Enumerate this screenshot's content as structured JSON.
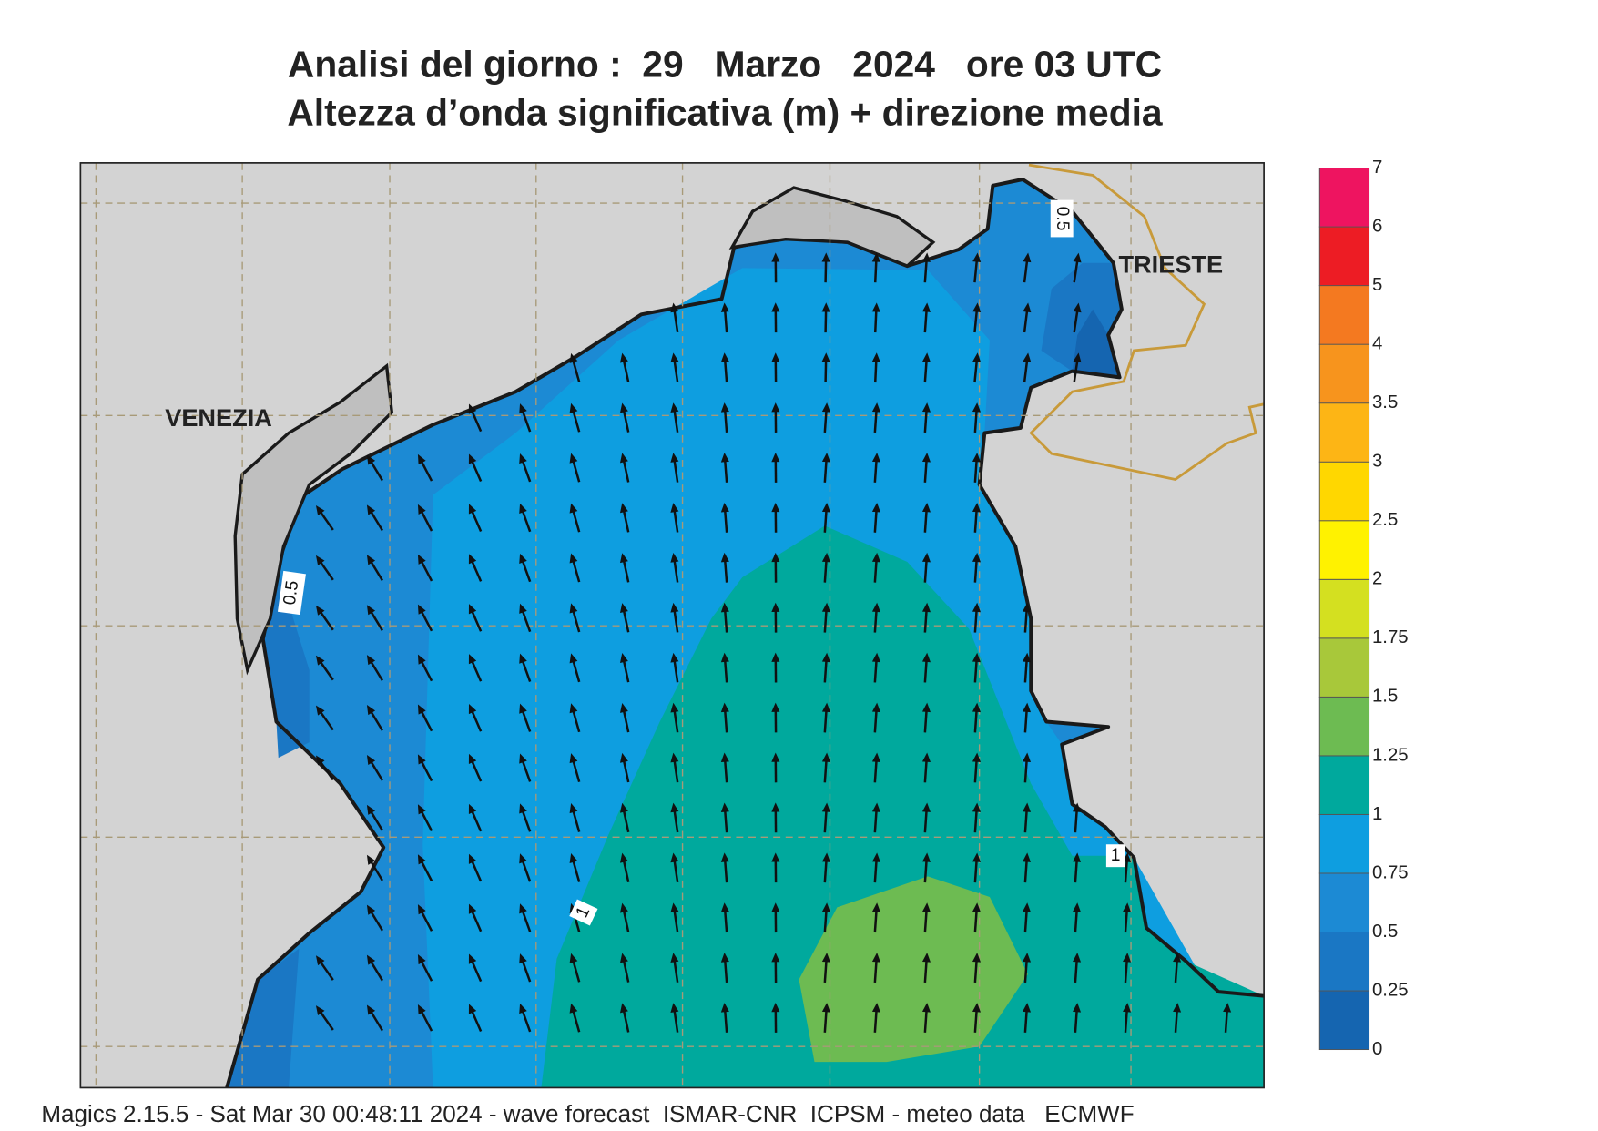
{
  "header": {
    "title": [
      "Analisi del giorno :  29   Marzo   2024   ore 03 UTC",
      "Altezza d’onda significativa (m) + direzione media"
    ]
  },
  "places": [
    "VENEZIA",
    "TRIESTE"
  ],
  "contour_labels": [
    "0.5",
    "0.5",
    "1",
    "1"
  ],
  "legend": {
    "levels": [
      0,
      0.25,
      0.5,
      0.75,
      1,
      1.25,
      1.5,
      1.75,
      2,
      2.5,
      3,
      3.5,
      4,
      5,
      6,
      7
    ],
    "colors": [
      "#1565b0",
      "#1a77c4",
      "#1c8ad4",
      "#0e9ee0",
      "#00a99d",
      "#6dbb52",
      "#a8c83a",
      "#d4e020",
      "#fff200",
      "#ffd700",
      "#fdb515",
      "#f7941d",
      "#f47920",
      "#ed1c24",
      "#ee1460"
    ]
  },
  "footer": "Magics 2.15.5 - Sat Mar 30 00:48:11 2024 - wave forecast  ISMAR-CNR  ICPSM - meteo data   ECMWF"
}
